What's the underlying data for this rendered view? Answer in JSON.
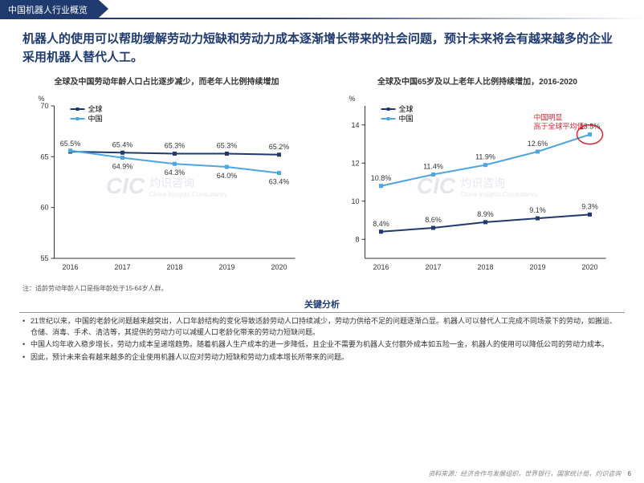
{
  "header_tab": "中国机器人行业概览",
  "title": "机器人的使用可以帮助缓解劳动力短缺和劳动力成本逐渐增长带来的社会问题，预计未来将会有越来越多的企业采用机器人替代人工。",
  "chart1": {
    "title": "全球及中国劳动年龄人口占比逐步减少，而老年人比例持续增加",
    "y_unit": "%",
    "ylim": [
      55,
      70
    ],
    "yticks": [
      55,
      60,
      65,
      70
    ],
    "xticks": [
      "2016",
      "2017",
      "2018",
      "2019",
      "2020"
    ],
    "legend": [
      {
        "label": "全球",
        "color": "#1f3a6e"
      },
      {
        "label": "中国",
        "color": "#4da6e0"
      }
    ],
    "series": {
      "global": {
        "values": [
          65.5,
          65.4,
          65.3,
          65.3,
          65.2
        ],
        "labels": [
          "65.5%",
          "65.4%",
          "65.3%",
          "65.3%",
          "65.2%"
        ],
        "color": "#1f3a6e"
      },
      "china": {
        "values": [
          65.6,
          64.9,
          64.3,
          64.0,
          63.4
        ],
        "labels": [
          "",
          "64.9%",
          "64.3%",
          "64.0%",
          "63.4%"
        ],
        "color": "#4da6e0"
      }
    },
    "note": "注：适龄劳动年龄人口是指年龄处于15-64岁人群。"
  },
  "chart2": {
    "title": "全球及中国65岁及以上老年人比例持续增加，2016-2020",
    "y_unit": "%",
    "ylim": [
      7,
      15
    ],
    "yticks": [
      8,
      10,
      12,
      14
    ],
    "xticks": [
      "2016",
      "2017",
      "2018",
      "2019",
      "2020"
    ],
    "legend": [
      {
        "label": "全球",
        "color": "#1f3a6e"
      },
      {
        "label": "中国",
        "color": "#4da6e0"
      }
    ],
    "series": {
      "global": {
        "values": [
          8.4,
          8.6,
          8.9,
          9.1,
          9.3
        ],
        "labels": [
          "8.4%",
          "8.6%",
          "8.9%",
          "9.1%",
          "9.3%"
        ],
        "color": "#1f3a6e"
      },
      "china": {
        "values": [
          10.8,
          11.4,
          11.9,
          12.6,
          13.5
        ],
        "labels": [
          "10.8%",
          "11.4%",
          "11.9%",
          "12.6%",
          "13.5%"
        ],
        "color": "#4da6e0"
      }
    },
    "annotation": {
      "text1": "中国明显",
      "text2": "高于全球平均值",
      "circle_idx": 4
    }
  },
  "analysis_header": "关键分析",
  "analysis": [
    "21世纪以来，中国的老龄化问题越来越突出，人口年龄结构的变化导致适龄劳动人口持续减少，劳动力供给不足的问题逐渐凸显。机器人可以替代人工完成不同场景下的劳动，如搬运、仓储、消毒、手术、清洁等，其提供的劳动力可以减缓人口老龄化带来的劳动力短缺问题。",
    "中国人均年收入稳步增长，劳动力成本呈递增趋势。随着机器人生产成本的进一步降低，且企业不需要为机器人支付额外成本如五险一金，机器人的使用可以降低公司的劳动力成本。",
    "因此，预计未来会有越来越多的企业使用机器人以应对劳动力短缺和劳动力成本增长所带来的问题。"
  ],
  "source": "资料来源：经济合作与发展组织，世界银行，国家统计局，灼识咨询",
  "page": "6",
  "watermark_brand": "CIC",
  "watermark_cn": "灼识咨询",
  "watermark_en": "China Insights Consultancy"
}
